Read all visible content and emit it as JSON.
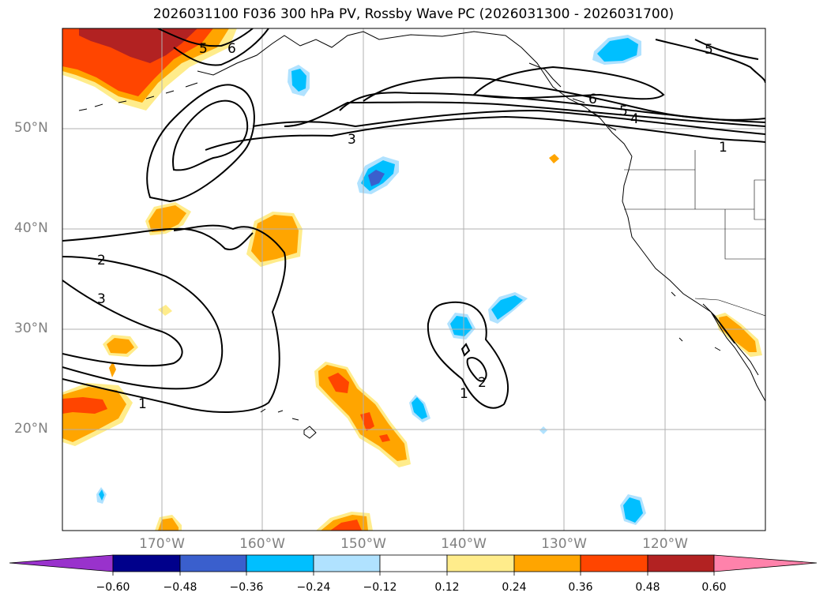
{
  "title": "2026031100 F036 300 hPa PV, Rossby Wave PC (2026031300 - 2026031700)",
  "lat_labels": [
    "50°N",
    "40°N",
    "30°N",
    "20°N"
  ],
  "lon_labels": [
    "170°W",
    "160°W",
    "150°W",
    "140°W",
    "130°W",
    "120°W"
  ],
  "contour_labels": [
    "6",
    "5",
    "3",
    "2",
    "3",
    "1",
    "6",
    "5",
    "4",
    "1",
    "1",
    "2",
    "5"
  ],
  "colorbar": {
    "ticks": [
      "−0.60",
      "−0.48",
      "−0.36",
      "−0.24",
      "−0.12",
      "0.12",
      "0.24",
      "0.36",
      "0.48",
      "0.60"
    ],
    "colors": [
      "#9932cc",
      "#00008b",
      "#3a5fcd",
      "#00bfff",
      "#b0e2ff",
      "#ffffff",
      "#ffec8b",
      "#ffa500",
      "#ff4500",
      "#b22222",
      "#ff82ab"
    ]
  },
  "colors": {
    "grid": "#b0b0b0",
    "label": "#808080",
    "warm_light": "#ffec8b",
    "warm_mid": "#ffa500",
    "warm_strong": "#ff4500",
    "warm_max": "#b22222",
    "cool_light": "#b0e2ff",
    "cool_mid": "#00bfff",
    "cool_strong": "#3a5fcd"
  }
}
